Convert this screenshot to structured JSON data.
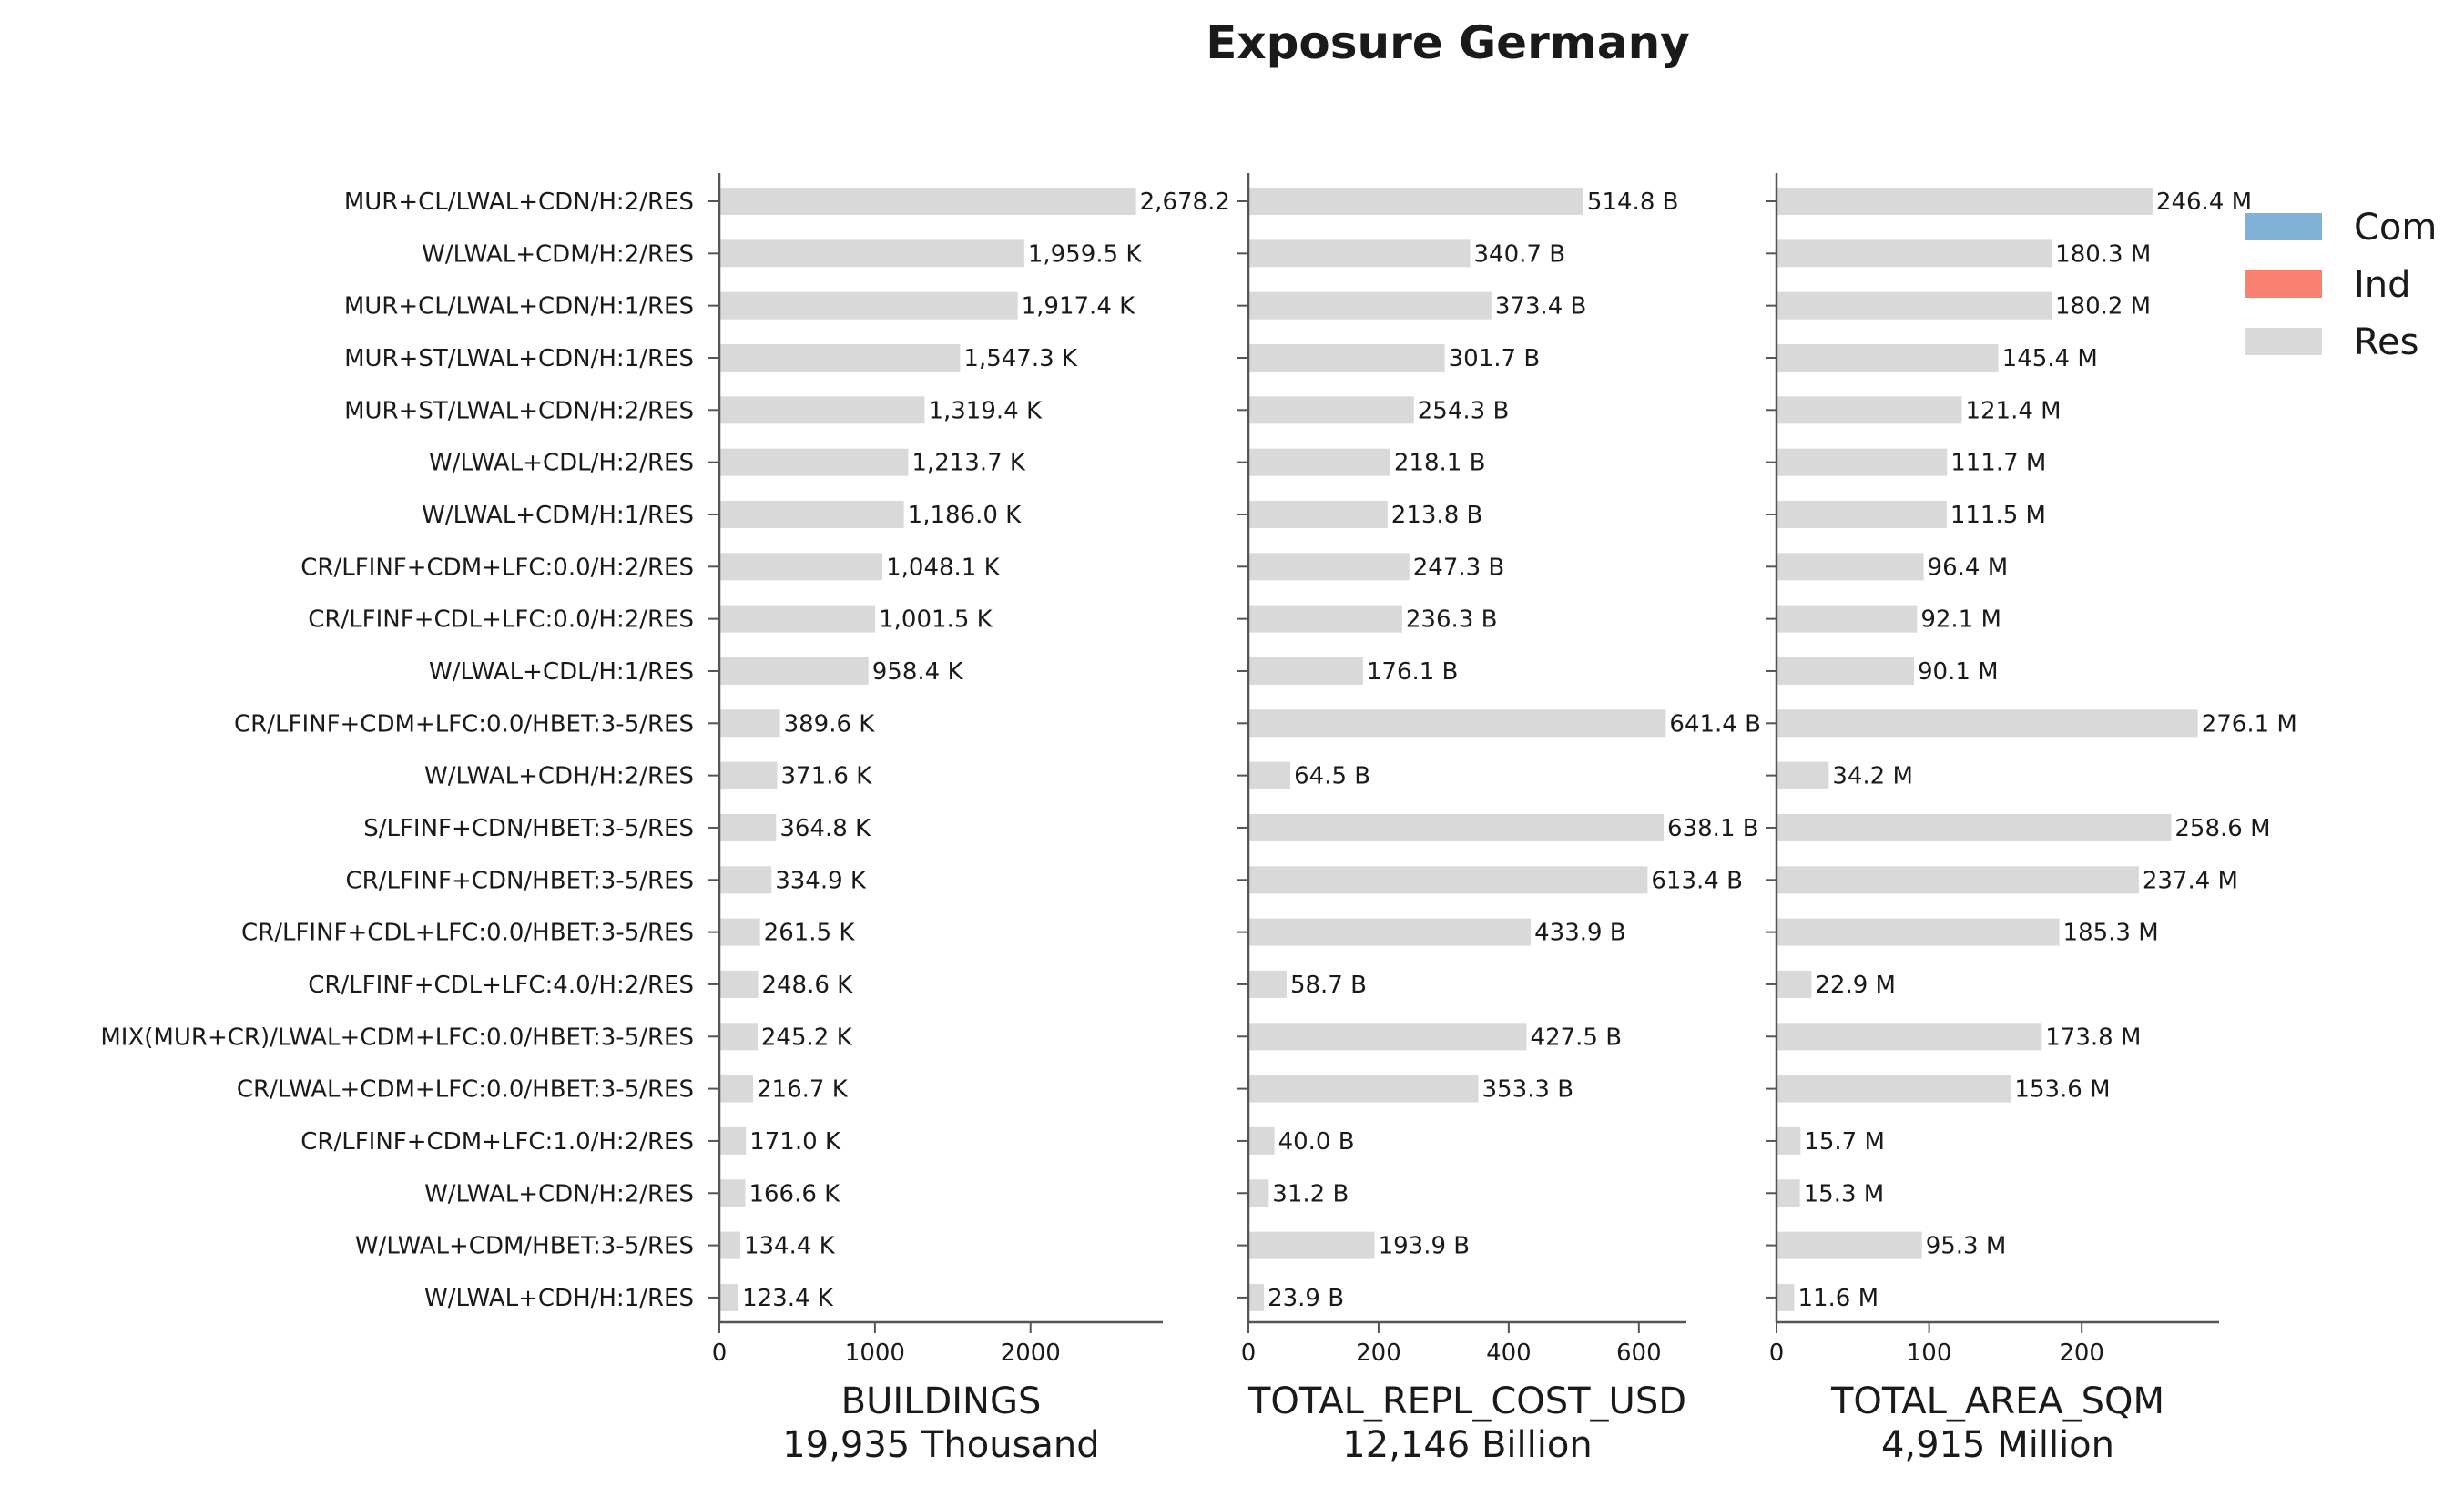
{
  "chart_data": {
    "type": "bar",
    "title": "Exposure Germany",
    "orientation": "horizontal",
    "categories": [
      "MUR+CL/LWAL+CDN/H:2/RES",
      "W/LWAL+CDM/H:2/RES",
      "MUR+CL/LWAL+CDN/H:1/RES",
      "MUR+ST/LWAL+CDN/H:1/RES",
      "MUR+ST/LWAL+CDN/H:2/RES",
      "W/LWAL+CDL/H:2/RES",
      "W/LWAL+CDM/H:1/RES",
      "CR/LFINF+CDM+LFC:0.0/H:2/RES",
      "CR/LFINF+CDL+LFC:0.0/H:2/RES",
      "W/LWAL+CDL/H:1/RES",
      "CR/LFINF+CDM+LFC:0.0/HBET:3-5/RES",
      "W/LWAL+CDH/H:2/RES",
      "S/LFINF+CDN/HBET:3-5/RES",
      "CR/LFINF+CDN/HBET:3-5/RES",
      "CR/LFINF+CDL+LFC:0.0/HBET:3-5/RES",
      "CR/LFINF+CDL+LFC:4.0/H:2/RES",
      "MIX(MUR+CR)/LWAL+CDM+LFC:0.0/HBET:3-5/RES",
      "CR/LWAL+CDM+LFC:0.0/HBET:3-5/RES",
      "CR/LFINF+CDM+LFC:1.0/H:2/RES",
      "W/LWAL+CDN/H:2/RES",
      "W/LWAL+CDM/HBET:3-5/RES",
      "W/LWAL+CDH/H:1/RES"
    ],
    "panels": [
      {
        "metric": "BUILDINGS",
        "total": "19,935 Thousand",
        "xlim": [
          0,
          2850
        ],
        "ticks": [
          0,
          1000,
          2000
        ],
        "values": [
          2678.2,
          1959.5,
          1917.4,
          1547.3,
          1319.4,
          1213.7,
          1186.0,
          1048.1,
          1001.5,
          958.4,
          389.6,
          371.6,
          364.8,
          334.9,
          261.5,
          248.6,
          245.2,
          216.7,
          171.0,
          166.6,
          134.4,
          123.4
        ],
        "labels": [
          "2,678.2",
          "1,959.5 K",
          "1,917.4 K",
          "1,547.3 K",
          "1,319.4 K",
          "1,213.7 K",
          "1,186.0 K",
          "1,048.1 K",
          "1,001.5 K",
          "958.4 K",
          "389.6 K",
          "371.6 K",
          "364.8 K",
          "334.9 K",
          "261.5 K",
          "248.6 K",
          "245.2 K",
          "216.7 K",
          "171.0 K",
          "166.6 K",
          "134.4 K",
          "123.4 K"
        ]
      },
      {
        "metric": "TOTAL_REPL_COST_USD",
        "total": "12,146 Billion",
        "xlim": [
          0,
          673
        ],
        "ticks": [
          0,
          200,
          400,
          600
        ],
        "values": [
          514.8,
          340.7,
          373.4,
          301.7,
          254.3,
          218.1,
          213.8,
          247.3,
          236.3,
          176.1,
          641.4,
          64.5,
          638.1,
          613.4,
          433.9,
          58.7,
          427.5,
          353.3,
          40.0,
          31.2,
          193.9,
          23.9
        ],
        "labels": [
          "514.8 B",
          "340.7 B",
          "373.4 B",
          "301.7 B",
          "254.3 B",
          "218.1 B",
          "213.8 B",
          "247.3 B",
          "236.3 B",
          "176.1 B",
          "641.4 B",
          "64.5 B",
          "638.1 B",
          "613.4 B",
          "433.9 B",
          "58.7 B",
          "427.5 B",
          "353.3 B",
          "40.0 B",
          "31.2 B",
          "193.9 B",
          "23.9 B"
        ]
      },
      {
        "metric": "TOTAL_AREA_SQM",
        "total": "4,915 Million",
        "xlim": [
          0,
          290
        ],
        "ticks": [
          0,
          100,
          200
        ],
        "values": [
          246.4,
          180.3,
          180.2,
          145.4,
          121.4,
          111.7,
          111.5,
          96.4,
          92.1,
          90.1,
          276.1,
          34.2,
          258.6,
          237.4,
          185.3,
          22.9,
          173.8,
          153.6,
          15.7,
          15.3,
          95.3,
          11.6
        ],
        "labels": [
          "246.4 M",
          "180.3 M",
          "180.2 M",
          "145.4 M",
          "121.4 M",
          "111.7 M",
          "111.5 M",
          "96.4 M",
          "92.1 M",
          "90.1 M",
          "276.1 M",
          "34.2 M",
          "258.6 M",
          "237.4 M",
          "185.3 M",
          "22.9 M",
          "173.8 M",
          "153.6 M",
          "15.7 M",
          "15.3 M",
          "95.3 M",
          "11.6 M"
        ]
      }
    ],
    "legend": {
      "placement": "top-right",
      "entries": [
        {
          "label": "Com",
          "color": "#7fb2d6"
        },
        {
          "label": "Ind",
          "color": "#f8826f"
        },
        {
          "label": "Res",
          "color": "#d9d9d9"
        }
      ]
    },
    "colors": {
      "bar": "#d9d9d9",
      "axis": "#555555",
      "text": "#1a1a1a"
    },
    "grid": false
  }
}
